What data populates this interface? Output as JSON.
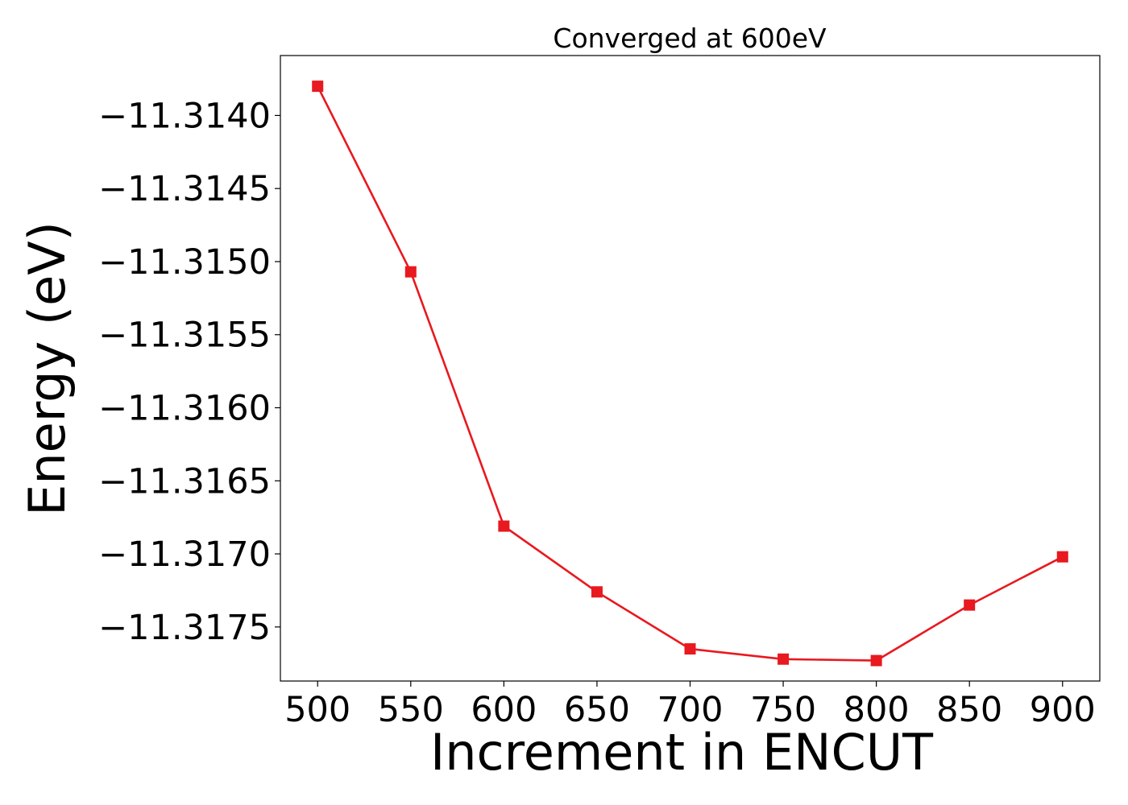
{
  "chart_data": {
    "type": "line",
    "title": "Converged at 600eV",
    "xlabel": "Increment in ENCUT",
    "ylabel": "Energy (eV)",
    "xlim": [
      480,
      920
    ],
    "ylim": [
      -11.31787,
      -11.31359
    ],
    "x_ticks": [
      500,
      550,
      600,
      650,
      700,
      750,
      800,
      850,
      900
    ],
    "x_tick_labels": [
      "500",
      "550",
      "600",
      "650",
      "700",
      "750",
      "800",
      "850",
      "900"
    ],
    "y_ticks": [
      -11.314,
      -11.3145,
      -11.315,
      -11.3155,
      -11.316,
      -11.3165,
      -11.317,
      -11.3175
    ],
    "y_tick_labels": [
      "−11.3140",
      "−11.3145",
      "−11.3150",
      "−11.3155",
      "−11.3160",
      "−11.3165",
      "−11.3170",
      "−11.3175"
    ],
    "grid": false,
    "legend": false,
    "series": [
      {
        "color": "#e8191f",
        "marker": "square",
        "x": [
          500,
          550,
          600,
          650,
          700,
          750,
          800,
          850,
          900
        ],
        "y": [
          -11.3138,
          -11.31507,
          -11.31681,
          -11.31726,
          -11.31765,
          -11.31772,
          -11.31773,
          -11.31735,
          -11.31702
        ]
      }
    ]
  }
}
